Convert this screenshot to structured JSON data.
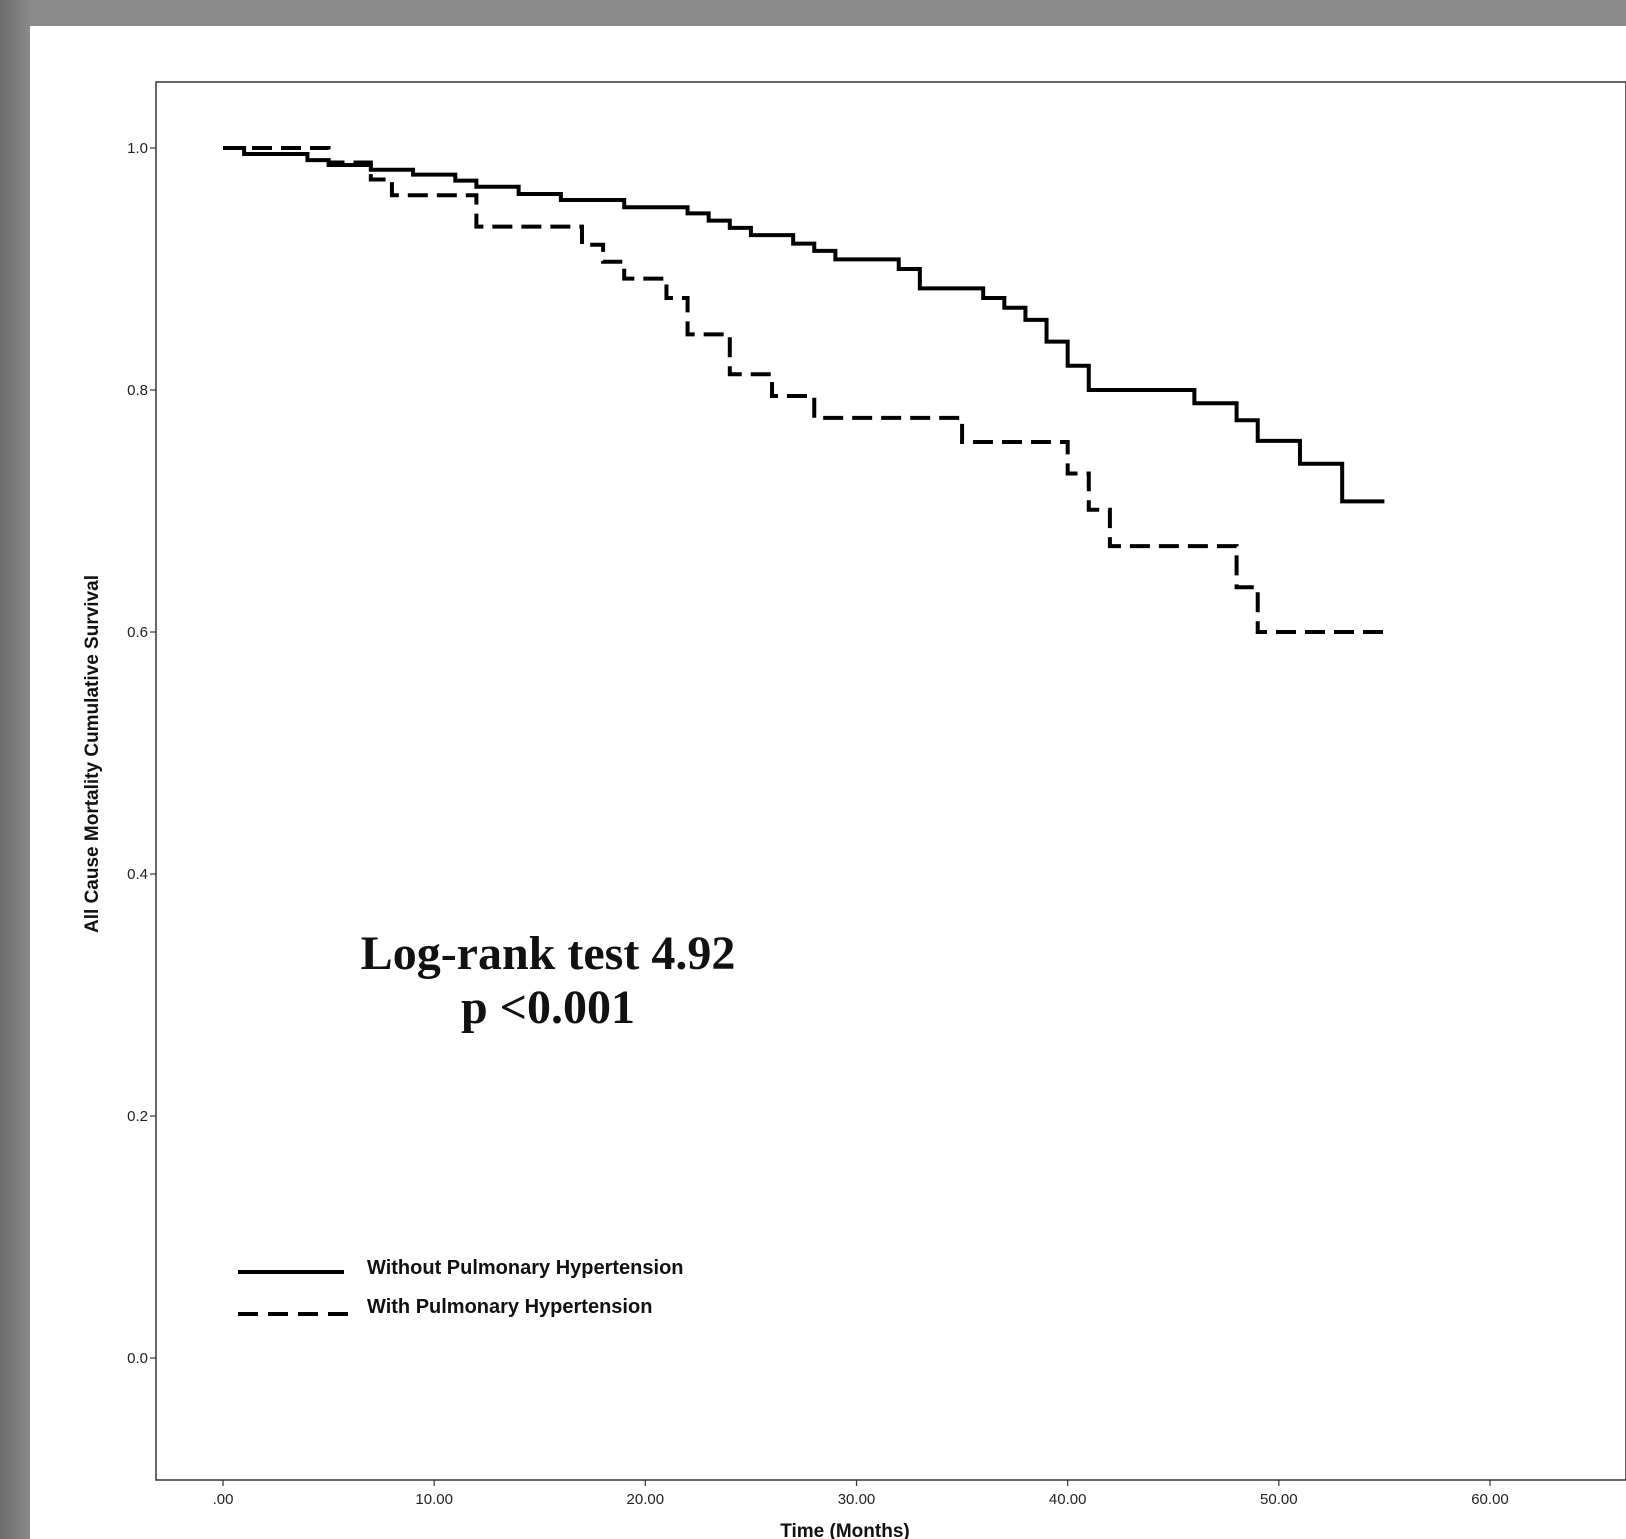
{
  "chart_data": {
    "type": "line",
    "title": "",
    "xlabel": "Time (Months)",
    "ylabel": "All Cause Mortality Cumulative Survival",
    "xlim": [
      0,
      60
    ],
    "ylim": [
      0,
      1
    ],
    "x_ticks": [
      ".00",
      "10.00",
      "20.00",
      "30.00",
      "40.00",
      "50.00",
      "60.00"
    ],
    "y_ticks": [
      "0.0",
      "0.2",
      "0.4",
      "0.6",
      "0.8",
      "1.0"
    ],
    "grid": false,
    "legend_position": "bottom-left",
    "annotation": [
      "Log-rank test 4.92",
      "p <0.001"
    ],
    "series": [
      {
        "name": "Without Pulmonary Hypertension",
        "style": "solid",
        "color": "#000000",
        "points": [
          [
            0,
            1.0
          ],
          [
            1,
            0.995
          ],
          [
            4,
            0.99
          ],
          [
            5,
            0.986
          ],
          [
            7,
            0.982
          ],
          [
            9,
            0.978
          ],
          [
            11,
            0.973
          ],
          [
            12,
            0.968
          ],
          [
            14,
            0.962
          ],
          [
            16,
            0.957
          ],
          [
            19,
            0.951
          ],
          [
            22,
            0.946
          ],
          [
            23,
            0.94
          ],
          [
            24,
            0.934
          ],
          [
            25,
            0.928
          ],
          [
            27,
            0.921
          ],
          [
            28,
            0.915
          ],
          [
            29,
            0.908
          ],
          [
            32,
            0.9
          ],
          [
            33,
            0.884
          ],
          [
            36,
            0.876
          ],
          [
            37,
            0.868
          ],
          [
            38,
            0.858
          ],
          [
            39,
            0.84
          ],
          [
            40,
            0.82
          ],
          [
            41,
            0.8
          ],
          [
            46,
            0.789
          ],
          [
            48,
            0.775
          ],
          [
            49,
            0.758
          ],
          [
            51,
            0.739
          ],
          [
            53,
            0.708
          ],
          [
            55,
            0.708
          ]
        ]
      },
      {
        "name": "With Pulmonary Hypertension",
        "style": "dashed",
        "color": "#000000",
        "points": [
          [
            0,
            1.0
          ],
          [
            5,
            0.988
          ],
          [
            7,
            0.974
          ],
          [
            8,
            0.961
          ],
          [
            12,
            0.935
          ],
          [
            17,
            0.92
          ],
          [
            18,
            0.906
          ],
          [
            19,
            0.892
          ],
          [
            21,
            0.876
          ],
          [
            22,
            0.846
          ],
          [
            24,
            0.813
          ],
          [
            26,
            0.795
          ],
          [
            28,
            0.777
          ],
          [
            35,
            0.757
          ],
          [
            40,
            0.731
          ],
          [
            41,
            0.701
          ],
          [
            42,
            0.671
          ],
          [
            48,
            0.637
          ],
          [
            49,
            0.6
          ],
          [
            55,
            0.6
          ]
        ]
      }
    ]
  }
}
